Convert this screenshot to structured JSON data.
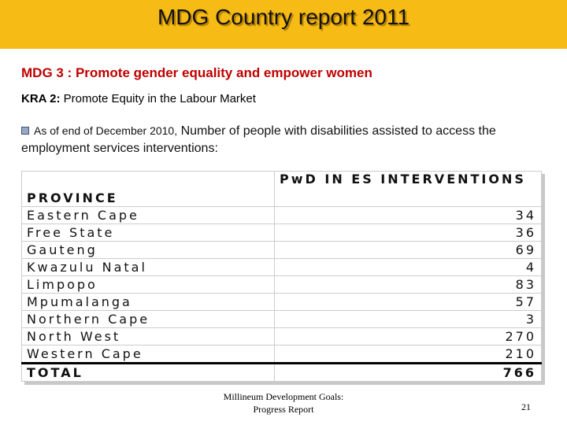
{
  "header": {
    "title": "MDG Country report 2011"
  },
  "subtitle": "MDG 3 : Promote gender equality and empower women",
  "kra": {
    "label": "KRA 2:",
    "text": "Promote Equity in the Labour Market"
  },
  "bullet": {
    "lead": "As of end of December 2010,",
    "text": "Number of people with disabilities  assisted to access the employment services interventions:"
  },
  "table": {
    "columns": [
      "PROVINCE",
      "PwD IN ES INTERVENTIONS"
    ],
    "rows": [
      [
        "Eastern Cape",
        34
      ],
      [
        "Free State",
        36
      ],
      [
        "Gauteng",
        69
      ],
      [
        "Kwazulu Natal",
        4
      ],
      [
        "Limpopo",
        83
      ],
      [
        "Mpumalanga",
        57
      ],
      [
        "Northern Cape",
        3
      ],
      [
        "North West",
        270
      ],
      [
        "Western Cape",
        210
      ]
    ],
    "total": [
      "TOTAL",
      766
    ]
  },
  "footer": {
    "lines": [
      "Millineum Development Goals:",
      "Progress Report"
    ],
    "page": "21"
  }
}
